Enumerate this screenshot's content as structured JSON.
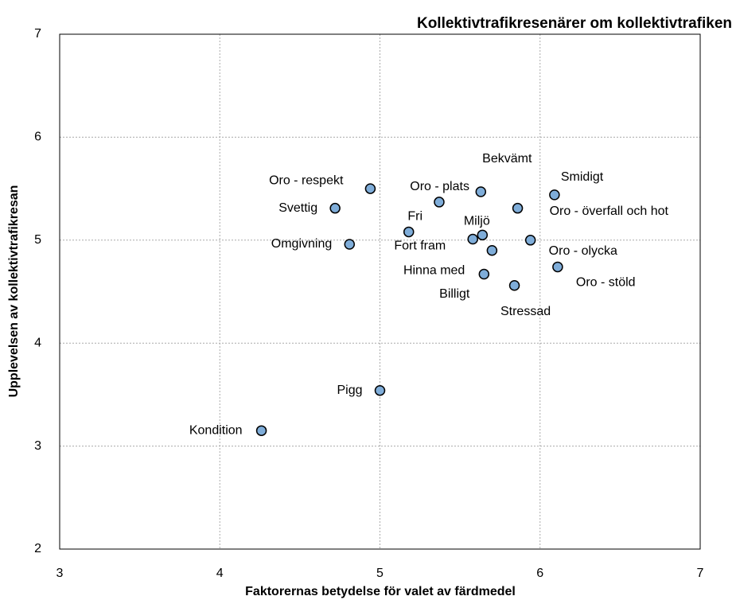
{
  "chart_data": {
    "type": "scatter",
    "title": "Kollektivtrafikresenärer om kollektivtrafiken",
    "x_label": "Faktorernas betydelse för valet av färdmedel",
    "y_label": "Upplevelsen av kollektivtrafikresan",
    "xlim": [
      3,
      7
    ],
    "xticks": [
      3,
      4,
      5,
      6,
      7
    ],
    "ylim": [
      2,
      7
    ],
    "yticks": [
      2,
      3,
      4,
      5,
      6,
      7
    ],
    "grid": true,
    "color": "#7fadd9",
    "labels": [
      "Oro - respekt",
      "Svettig",
      "Omgivning",
      "Fri",
      "Oro - plats",
      "Bekvämt",
      "Oro - överfall och hot",
      "Smidigt",
      "Fort fram",
      "Miljö",
      "Oro - olycka",
      "Billigt",
      "Oro - stöld",
      "Hinna med",
      "Stressad",
      "Pigg",
      "Kondition"
    ],
    "x": [
      4.94,
      4.72,
      4.81,
      5.18,
      5.37,
      5.63,
      5.86,
      6.09,
      5.58,
      5.64,
      5.94,
      5.7,
      6.11,
      5.65,
      5.84,
      5.0,
      4.26
    ],
    "values": [
      5.5,
      5.31,
      4.96,
      5.08,
      5.37,
      5.47,
      5.31,
      5.44,
      5.01,
      5.05,
      5.0,
      4.9,
      4.74,
      4.67,
      4.56,
      3.54,
      3.15
    ]
  }
}
